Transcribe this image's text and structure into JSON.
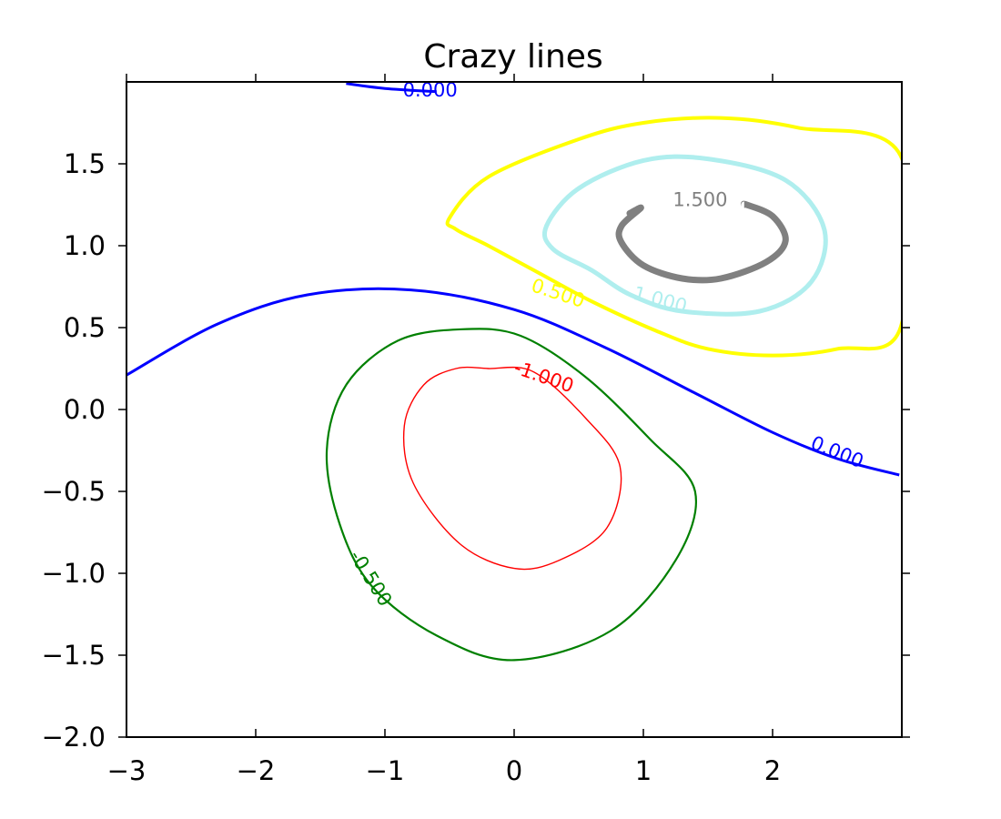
{
  "chart_data": {
    "type": "line",
    "title": "Crazy lines",
    "xlabel": "",
    "ylabel": "",
    "xlim": [
      -3,
      3
    ],
    "ylim": [
      -2,
      2
    ],
    "x_ticks": [
      -3,
      -2,
      -1,
      0,
      1,
      2
    ],
    "y_ticks": [
      -2.0,
      -1.5,
      -1.0,
      -0.5,
      0.0,
      0.5,
      1.0,
      1.5
    ],
    "x_tick_labels": [
      "−3",
      "−2",
      "−1",
      "0",
      "1",
      "2"
    ],
    "y_tick_labels": [
      "−2.0",
      "−1.5",
      "−1.0",
      "−0.5",
      "0.0",
      "0.5",
      "1.0",
      "1.5"
    ],
    "grid": false,
    "series": [
      {
        "level": -1.0,
        "label": "-1.000",
        "color": "#ff0000",
        "closed": true,
        "points": [
          [
            -0.2,
            0.25
          ],
          [
            0.15,
            0.23
          ],
          [
            0.55,
            -0.05
          ],
          [
            0.82,
            -0.35
          ],
          [
            0.72,
            -0.72
          ],
          [
            0.35,
            -0.92
          ],
          [
            0.0,
            -0.97
          ],
          [
            -0.42,
            -0.82
          ],
          [
            -0.78,
            -0.45
          ],
          [
            -0.85,
            -0.1
          ],
          [
            -0.7,
            0.15
          ],
          [
            -0.45,
            0.25
          ]
        ],
        "label_pos": [
          0.23,
          0.2
        ]
      },
      {
        "level": -0.5,
        "label": "-0.500",
        "color": "#008000",
        "closed": true,
        "points": [
          [
            -0.4,
            0.49
          ],
          [
            0.05,
            0.45
          ],
          [
            0.55,
            0.2
          ],
          [
            1.05,
            -0.18
          ],
          [
            1.4,
            -0.5
          ],
          [
            1.25,
            -0.92
          ],
          [
            0.75,
            -1.35
          ],
          [
            0.0,
            -1.53
          ],
          [
            -0.6,
            -1.38
          ],
          [
            -1.1,
            -1.08
          ],
          [
            -1.35,
            -0.7
          ],
          [
            -1.45,
            -0.25
          ],
          [
            -1.3,
            0.15
          ],
          [
            -0.9,
            0.42
          ]
        ],
        "label_pos": [
          -1.11,
          -1.03
        ]
      },
      {
        "level": 0.0,
        "label": "0.000",
        "color": "#0000ff",
        "closed": false,
        "points": [
          [
            -3.0,
            0.21
          ],
          [
            -2.3,
            0.52
          ],
          [
            -1.6,
            0.7
          ],
          [
            -0.8,
            0.73
          ],
          [
            0.0,
            0.61
          ],
          [
            0.7,
            0.38
          ],
          [
            1.4,
            0.1
          ],
          [
            2.0,
            -0.14
          ],
          [
            2.5,
            -0.3
          ],
          [
            2.98,
            -0.4
          ]
        ],
        "label_pos": [
          2.5,
          -0.26
        ]
      },
      {
        "level": 0.0,
        "label": "0.000",
        "color": "#0000ff",
        "closed": false,
        "points": [
          [
            -1.3,
            1.99
          ],
          [
            -1.0,
            1.96
          ],
          [
            -0.6,
            1.94
          ]
        ],
        "label_pos": [
          -0.65,
          1.95
        ]
      },
      {
        "level": 0.5,
        "label": "0.500",
        "color": "#ffff00",
        "closed": true,
        "points": [
          [
            -0.5,
            1.17
          ],
          [
            -0.2,
            1.42
          ],
          [
            0.5,
            1.65
          ],
          [
            1.0,
            1.75
          ],
          [
            1.6,
            1.78
          ],
          [
            2.2,
            1.72
          ],
          [
            2.99,
            1.55
          ],
          [
            2.99,
            0.5
          ],
          [
            2.5,
            0.37
          ],
          [
            2.0,
            0.33
          ],
          [
            1.5,
            0.37
          ],
          [
            1.1,
            0.48
          ],
          [
            0.6,
            0.66
          ],
          [
            0.2,
            0.83
          ],
          [
            -0.2,
            1.0
          ],
          [
            -0.45,
            1.1
          ]
        ],
        "label_pos": [
          0.34,
          0.71
        ]
      },
      {
        "level": 1.0,
        "label": "1.000",
        "color": "#afeeee",
        "closed": true,
        "points": [
          [
            0.25,
            1.12
          ],
          [
            0.5,
            1.35
          ],
          [
            1.0,
            1.52
          ],
          [
            1.5,
            1.53
          ],
          [
            2.1,
            1.4
          ],
          [
            2.4,
            1.1
          ],
          [
            2.3,
            0.78
          ],
          [
            1.9,
            0.6
          ],
          [
            1.3,
            0.6
          ],
          [
            0.9,
            0.7
          ],
          [
            0.6,
            0.85
          ],
          [
            0.3,
            0.98
          ]
        ],
        "label_pos": [
          1.13,
          0.67
        ]
      },
      {
        "level": 1.5,
        "label": "1.500",
        "color": "#808080",
        "closed": false,
        "points": [
          [
            0.9,
            1.2
          ],
          [
            0.9,
            1.2
          ],
          [
            0.98,
            1.23
          ],
          [
            0.83,
            1.12
          ],
          [
            0.83,
            1.02
          ],
          [
            1.0,
            0.88
          ],
          [
            1.3,
            0.8
          ],
          [
            1.6,
            0.8
          ],
          [
            1.95,
            0.9
          ],
          [
            2.1,
            1.03
          ],
          [
            2.0,
            1.18
          ],
          [
            1.8,
            1.25
          ],
          [
            1.78,
            1.25
          ]
        ],
        "label_pos": [
          1.44,
          1.28
        ]
      }
    ]
  }
}
